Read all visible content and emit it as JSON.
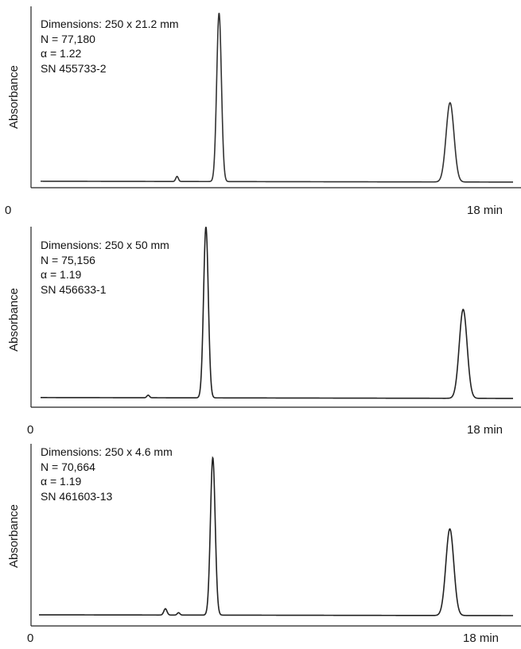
{
  "chart_data": [
    {
      "type": "line",
      "ylabel": "Absorbance",
      "x_tick_labels": [
        "0",
        "18 min"
      ],
      "xlim": [
        0,
        18
      ],
      "annotations": [
        "Dimensions: 250 x 21.2 mm",
        "N = 77,180",
        "α = 1.22",
        "SN 455733-2"
      ],
      "baseline": 0.01,
      "peaks": [
        {
          "x": 5.2,
          "height": 0.03,
          "width": 0.05
        },
        {
          "x": 6.8,
          "height": 1.0,
          "width": 0.09
        },
        {
          "x": 15.6,
          "height": 0.47,
          "width": 0.15
        }
      ]
    },
    {
      "type": "line",
      "ylabel": "Absorbance",
      "x_tick_labels": [
        "0",
        "18 min"
      ],
      "xlim": [
        0,
        18
      ],
      "annotations": [
        "Dimensions: 250 x 50 mm",
        "N = 75,156",
        "α = 1.19",
        "SN 456633-1"
      ],
      "baseline": 0.01,
      "peaks": [
        {
          "x": 4.1,
          "height": 0.015,
          "width": 0.05
        },
        {
          "x": 6.3,
          "height": 1.0,
          "width": 0.09
        },
        {
          "x": 16.1,
          "height": 0.52,
          "width": 0.15
        }
      ]
    },
    {
      "type": "line",
      "ylabel": "Absorbance",
      "x_tick_labels": [
        "0",
        "18 min"
      ],
      "xlim": [
        0,
        18
      ],
      "annotations": [
        "Dimensions: 250 x 4.6 mm",
        "N = 70,664",
        "α = 1.19",
        "SN 461603-13"
      ],
      "baseline": 0.01,
      "peaks": [
        {
          "x": 4.8,
          "height": 0.04,
          "width": 0.06
        },
        {
          "x": 5.3,
          "height": 0.015,
          "width": 0.05
        },
        {
          "x": 6.6,
          "height": 1.0,
          "width": 0.09
        },
        {
          "x": 15.6,
          "height": 0.55,
          "width": 0.15
        }
      ]
    }
  ]
}
